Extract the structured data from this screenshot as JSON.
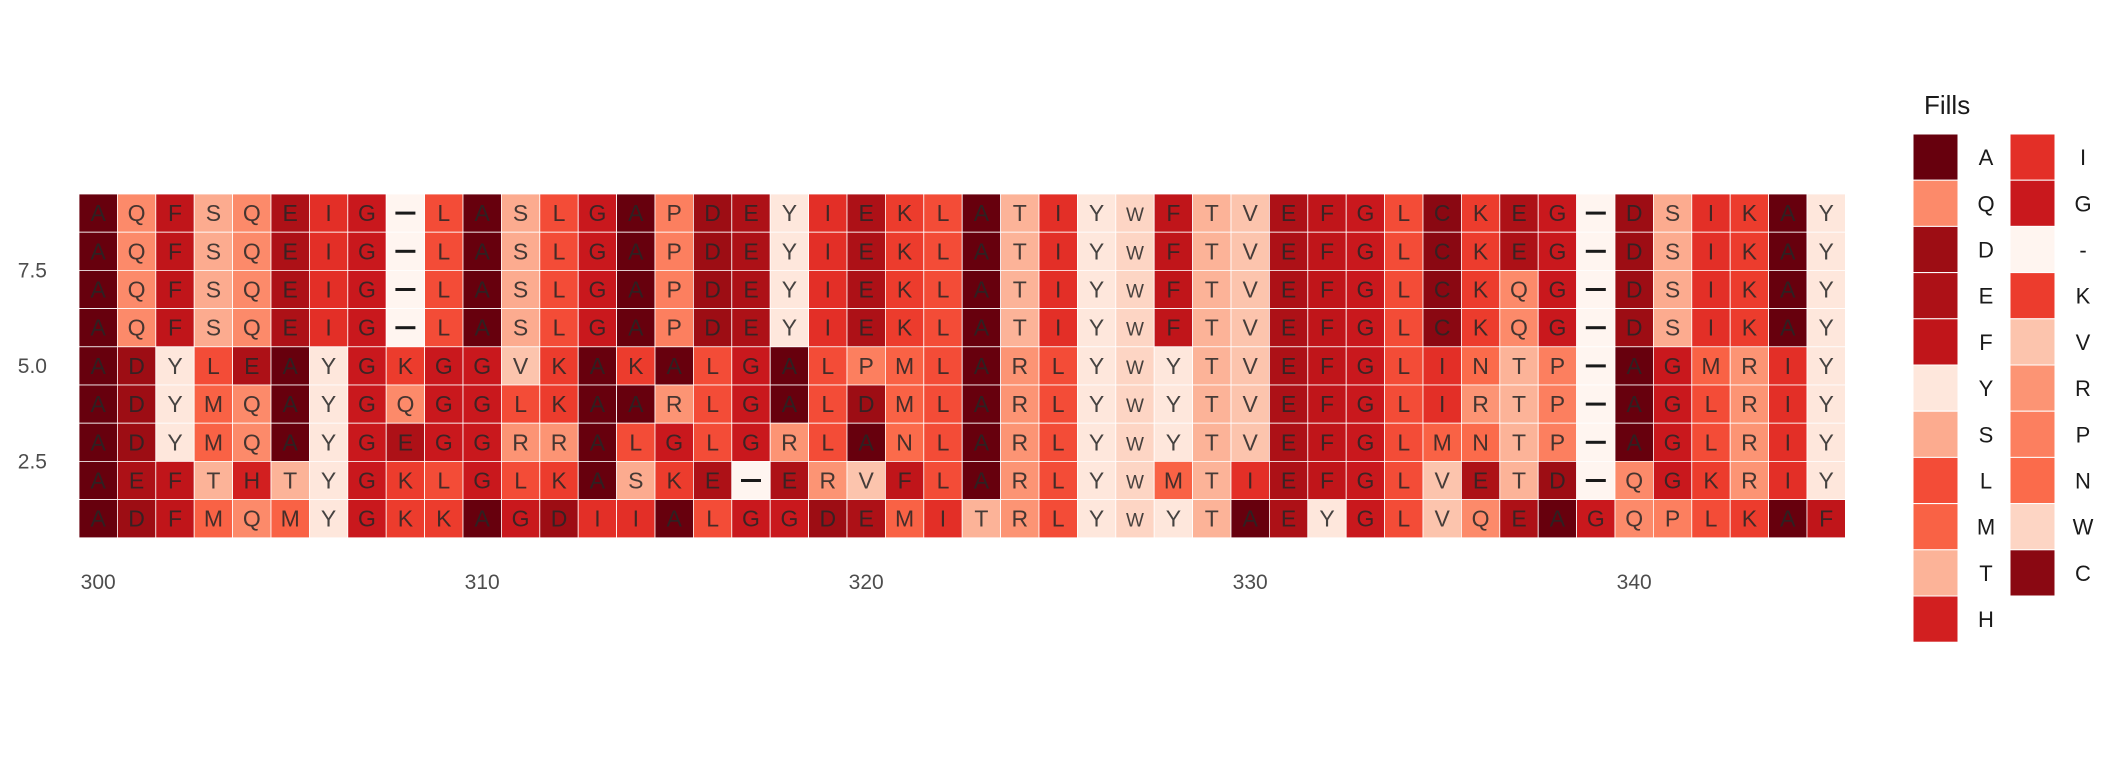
{
  "chart_data": {
    "type": "heatmap",
    "title": "",
    "xlabel": "",
    "ylabel": "",
    "x_start": 300,
    "x_ticks": [
      300,
      310,
      320,
      330,
      340
    ],
    "y_ticks": [
      2.5,
      5.0,
      7.5
    ],
    "y_tick_labels": [
      "2.5",
      "5.0",
      "7.5"
    ],
    "rows_top_to_bottom": [
      "AQFSQEIG-LASLGAPDEYIEKLATIYWFTVEFGLCKEG-DSIKAY",
      "AQFSQEIG-LASLGAPDEYIEKLATIYWFTVEFGLCKEG-DSIKAY",
      "AQFSQEIG-LASLGAPDEYIEKLATIYWFTVEFGLCKQG-DSIKAY",
      "AQFSQEIG-LASLGAPDEYIEKLATIYWFTVEFGLCKQG-DSIKAY",
      "ADYLEAYGKGGVKAKALGALPMLARLYWYTVEFGLINTP-AGMRIY",
      "ADYMQAYGQGGLKAARLGALDMLARLYWYTVEFGLIRTP-AGLRIY",
      "ADYMQAYGEGGRRALGLGRLANLARLYWYTVEFGLMNTP-AGLRIY",
      "AEFTHTYGKLGLKASKE-ERVFLARLYWMTIEFGLVETD-QGKRIY",
      "ADFMQMYGKKAGDIIALGGDEMITRLYWYTAEYGLVQEAGQPLKAF"
    ],
    "legend": {
      "title": "Fills",
      "entries": [
        {
          "label": "A",
          "color": "#67000d"
        },
        {
          "label": "Q",
          "color": "#fc8a6a"
        },
        {
          "label": "D",
          "color": "#9d0d14"
        },
        {
          "label": "E",
          "color": "#ad1117"
        },
        {
          "label": "F",
          "color": "#c0151a"
        },
        {
          "label": "Y",
          "color": "#fee7dc"
        },
        {
          "label": "S",
          "color": "#fcab8f"
        },
        {
          "label": "L",
          "color": "#f34c37"
        },
        {
          "label": "M",
          "color": "#f96245"
        },
        {
          "label": "T",
          "color": "#fcb398"
        },
        {
          "label": "H",
          "color": "#d21f20"
        },
        {
          "label": "I",
          "color": "#e32f27"
        },
        {
          "label": "G",
          "color": "#c9181d"
        },
        {
          "label": "-",
          "color": "#fff5f0"
        },
        {
          "label": "K",
          "color": "#ec3c2d"
        },
        {
          "label": "V",
          "color": "#fcc4ad"
        },
        {
          "label": "R",
          "color": "#fc9474"
        },
        {
          "label": "P",
          "color": "#fc7f5f"
        },
        {
          "label": "N",
          "color": "#fb6b4b"
        },
        {
          "label": "W",
          "color": "#fdd5c4"
        },
        {
          "label": "C",
          "color": "#8a0812"
        }
      ]
    }
  }
}
